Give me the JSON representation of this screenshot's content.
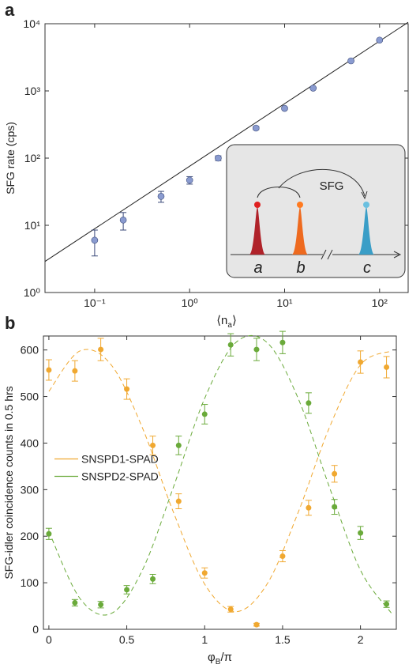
{
  "chart_data": [
    {
      "type": "scatter",
      "panel_label": "a",
      "ylabel": "SFG rate (cps)",
      "xlabel": [
        "⟨n",
        "a",
        "⟩"
      ],
      "xscale": "log",
      "yscale": "log",
      "xlim": [
        0.03,
        200
      ],
      "ylim": [
        1,
        10000
      ],
      "xticks": [
        {
          "value": 0.1,
          "label": "10⁻¹"
        },
        {
          "value": 1,
          "label": "10⁰"
        },
        {
          "value": 10,
          "label": "10¹"
        },
        {
          "value": 100,
          "label": "10²"
        }
      ],
      "yticks": [
        {
          "value": 1,
          "label": "10⁰"
        },
        {
          "value": 10,
          "label": "10¹"
        },
        {
          "value": 100,
          "label": "10²"
        },
        {
          "value": 1000,
          "label": "10³"
        },
        {
          "value": 10000,
          "label": "10⁴"
        }
      ],
      "x": [
        0.1,
        0.2,
        0.5,
        1,
        2,
        5,
        10,
        20,
        50,
        100
      ],
      "values": [
        6,
        12,
        27,
        47,
        100,
        280,
        550,
        1100,
        2800,
        5700
      ],
      "errors": [
        2.5,
        3.5,
        5,
        6,
        8,
        15,
        20,
        30,
        50,
        80
      ],
      "color": "#8a9bd0",
      "error_color": "#3b4a7a",
      "fit": {
        "x": [
          0.03,
          200
        ],
        "values": [
          2.9,
          10500
        ],
        "color": "#222222"
      },
      "inset": {
        "process": "SFG",
        "peaks": [
          "a",
          "b",
          "c"
        ]
      }
    },
    {
      "type": "scatter",
      "panel_label": "b",
      "ylabel": "SFG-idler coincidence counts in 0.5 hrs",
      "xlabel": [
        "φ",
        "B",
        "/π"
      ],
      "xlim": [
        -0.035,
        2.23
      ],
      "ylim": [
        0,
        630
      ],
      "xticks": [
        0,
        0.5,
        1,
        1.5,
        2
      ],
      "yticks": [
        0,
        100,
        200,
        300,
        400,
        500,
        600
      ],
      "legend": "left",
      "x": [
        0,
        0.167,
        0.333,
        0.5,
        0.667,
        0.833,
        1,
        1.167,
        1.333,
        1.5,
        1.667,
        1.833,
        2,
        2.167
      ],
      "fit_x": [
        0,
        0.2,
        0.4,
        0.6,
        0.8,
        1.0,
        1.2,
        1.4,
        1.6,
        1.8,
        2.0,
        2.2
      ],
      "series": [
        {
          "name": "SNSPD1-SPAD",
          "color": "#f0a830",
          "values": [
            557,
            555,
            601,
            516,
            395,
            275,
            121,
            43,
            10,
            157,
            261,
            334,
            574,
            563
          ],
          "errors": [
            22,
            22,
            24,
            22,
            20,
            16,
            11,
            6,
            3,
            12,
            16,
            18,
            24,
            23
          ],
          "fit_values": [
            511,
            598,
            568,
            433,
            251,
            97,
            38,
            97,
            251,
            433,
            568,
            598
          ]
        },
        {
          "name": "SNSPD2-SPAD",
          "color": "#6aaa3a",
          "values": [
            205,
            57,
            53,
            85,
            108,
            395,
            462,
            611,
            601,
            616,
            486,
            263,
            207,
            54
          ],
          "errors": [
            12,
            7,
            7,
            9,
            10,
            20,
            21,
            24,
            24,
            24,
            22,
            16,
            14,
            7
          ],
          "fit_values": [
            210,
            66,
            34,
            127,
            306,
            496,
            616,
            616,
            496,
            306,
            127,
            34
          ]
        }
      ]
    }
  ]
}
